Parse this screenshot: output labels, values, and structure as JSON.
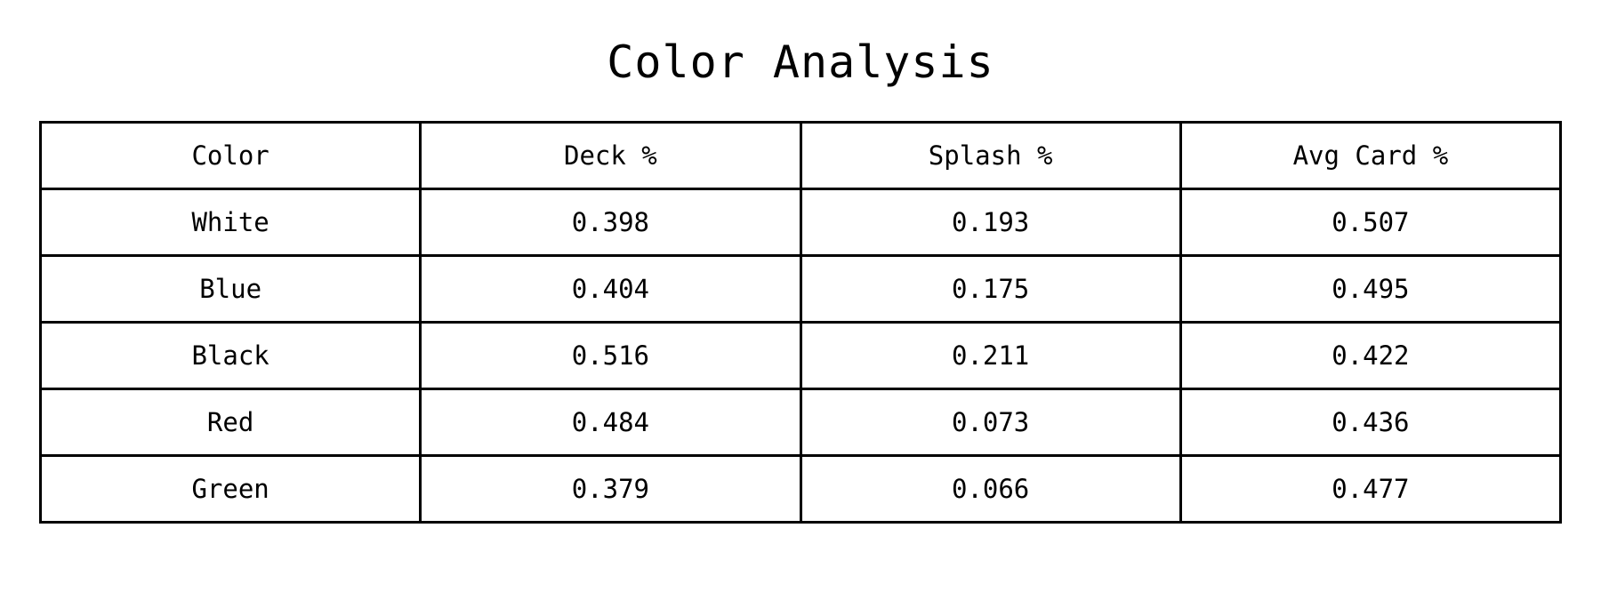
{
  "title": "Color Analysis",
  "chart_data": {
    "type": "table",
    "title": "Color Analysis",
    "columns": [
      "Color",
      "Deck %",
      "Splash %",
      "Avg Card %"
    ],
    "rows": [
      [
        "White",
        "0.398",
        "0.193",
        "0.507"
      ],
      [
        "Blue",
        "0.404",
        "0.175",
        "0.495"
      ],
      [
        "Black",
        "0.516",
        "0.211",
        "0.422"
      ],
      [
        "Red",
        "0.484",
        "0.073",
        "0.436"
      ],
      [
        "Green",
        "0.379",
        "0.066",
        "0.477"
      ]
    ]
  }
}
